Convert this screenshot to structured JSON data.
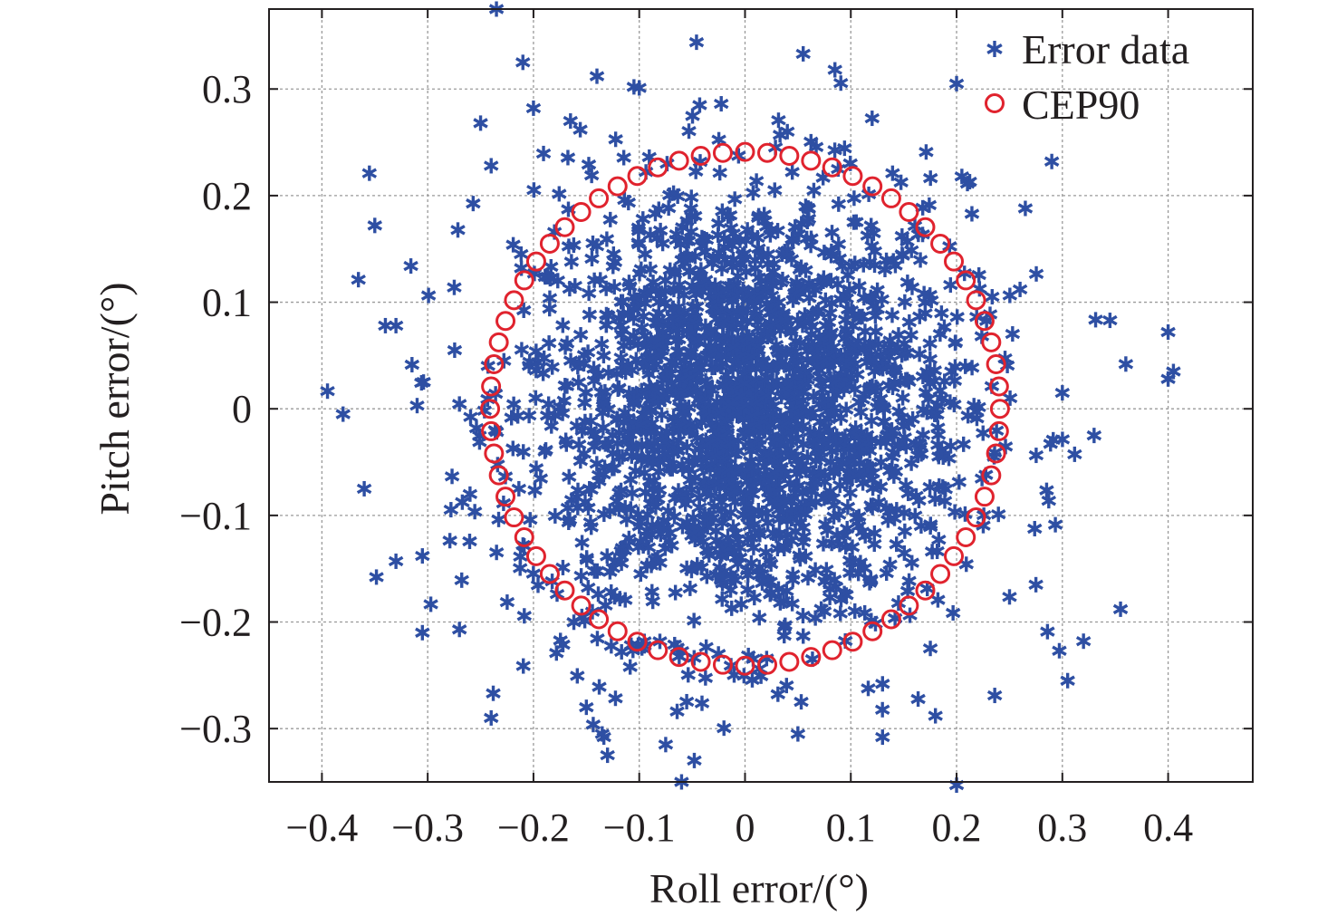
{
  "chart_data": {
    "type": "scatter",
    "xlabel": "Roll error/(°)",
    "ylabel": "Pitch error/(°)",
    "xlim": [
      -0.45,
      0.48
    ],
    "ylim": [
      -0.35,
      0.375
    ],
    "x_ticks": [
      -0.4,
      -0.3,
      -0.2,
      -0.1,
      0,
      0.1,
      0.2,
      0.3,
      0.4
    ],
    "x_tick_labels": [
      "−0.4",
      "−0.3",
      "−0.2",
      "−0.1",
      "0",
      "0.1",
      "0.2",
      "0.3",
      "0.4"
    ],
    "y_ticks": [
      -0.3,
      -0.2,
      -0.1,
      0,
      0.1,
      0.2,
      0.3
    ],
    "y_tick_labels": [
      "−0.3",
      "−0.2",
      "−0.1",
      "0",
      "0.1",
      "0.2",
      "0.3"
    ],
    "grid": true,
    "legend_position": "top-right",
    "series": [
      {
        "name": "Error data",
        "marker": "asterisk",
        "color": "#2e4fa3",
        "distribution": "bivariate normal, mean (0, 0), about 2000 points",
        "std_x": 0.105,
        "std_y": 0.105,
        "outliers": [
          [
            -0.235,
            0.375
          ],
          [
            -0.21,
            0.325
          ],
          [
            -0.14,
            0.312
          ],
          [
            -0.105,
            0.302
          ],
          [
            -0.1,
            0.301
          ],
          [
            -0.2,
            0.282
          ],
          [
            -0.25,
            0.268
          ],
          [
            -0.165,
            0.27
          ],
          [
            -0.24,
            0.228
          ],
          [
            -0.35,
            0.172
          ],
          [
            -0.34,
            0.078
          ],
          [
            -0.33,
            0.078
          ],
          [
            -0.38,
            -0.005
          ],
          [
            -0.31,
            0.003
          ],
          [
            -0.36,
            -0.075
          ],
          [
            -0.33,
            -0.143
          ],
          [
            -0.305,
            -0.138
          ],
          [
            -0.305,
            -0.21
          ],
          [
            -0.27,
            -0.207
          ],
          [
            -0.24,
            -0.29
          ],
          [
            -0.15,
            -0.28
          ],
          [
            -0.135,
            -0.305
          ],
          [
            -0.13,
            -0.325
          ],
          [
            -0.075,
            -0.315
          ],
          [
            -0.06,
            -0.35
          ],
          [
            0.05,
            -0.305
          ],
          [
            0.13,
            -0.308
          ],
          [
            0.2,
            -0.353
          ],
          [
            0.055,
            0.333
          ],
          [
            0.085,
            0.318
          ],
          [
            0.2,
            0.305
          ],
          [
            0.29,
            0.232
          ],
          [
            0.345,
            0.083
          ],
          [
            0.36,
            0.042
          ],
          [
            0.4,
            0.072
          ],
          [
            0.405,
            0.035
          ],
          [
            0.4,
            0.028
          ],
          [
            0.355,
            -0.188
          ],
          [
            0.32,
            -0.218
          ],
          [
            0.305,
            -0.255
          ],
          [
            0.33,
            -0.025
          ],
          [
            0.3,
            0.015
          ],
          [
            0.275,
            -0.165
          ],
          [
            0.18,
            -0.288
          ],
          [
            0.13,
            -0.258
          ],
          [
            0.04,
            0.26
          ],
          [
            0.205,
            0.218
          ],
          [
            0.265,
            0.188
          ],
          [
            0.26,
            0.112
          ],
          [
            -0.26,
            -0.08
          ]
        ]
      },
      {
        "name": "CEP90",
        "marker": "circle-open",
        "color": "#e0232e",
        "center": [
          0,
          0
        ],
        "radius": 0.241,
        "points": 72
      }
    ]
  }
}
